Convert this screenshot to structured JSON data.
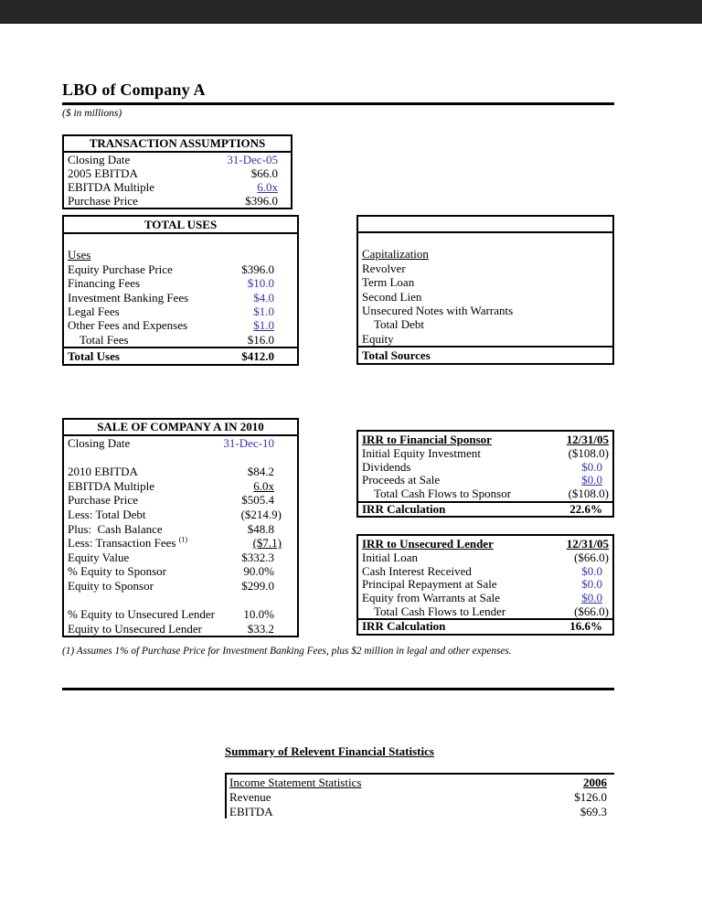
{
  "colors": {
    "input_blue": "#3333b2",
    "top_bar": "#262626",
    "border": "#000000"
  },
  "header": {
    "title": "LBO of Company A",
    "subtitle": "($ in millions)"
  },
  "transaction_assumptions": {
    "title": "TRANSACTION ASSUMPTIONS",
    "rows": [
      {
        "label": "Closing Date",
        "value": "31-Dec-05"
      },
      {
        "label": "2005 EBITDA",
        "value": "$66.0"
      },
      {
        "label": "EBITDA Multiple",
        "value": "6.0x"
      },
      {
        "label": "Purchase Price",
        "value": "$396.0"
      }
    ]
  },
  "total_uses": {
    "title": "TOTAL USES",
    "section_label": "Uses",
    "rows": [
      {
        "label": "Equity Purchase Price",
        "value": "$396.0"
      },
      {
        "label": "Financing Fees",
        "value": "$10.0"
      },
      {
        "label": "Investment Banking Fees",
        "value": "$4.0"
      },
      {
        "label": "Legal Fees",
        "value": "$1.0"
      },
      {
        "label": "Other Fees and Expenses",
        "value": "$1.0"
      },
      {
        "label": "Total Fees",
        "value": "$16.0"
      }
    ],
    "total": {
      "label": "Total Uses",
      "value": "$412.0"
    }
  },
  "total_sources": {
    "title": "",
    "section_label": "Capitalization",
    "rows": [
      {
        "label": "Revolver"
      },
      {
        "label": "Term Loan"
      },
      {
        "label": "Second Lien"
      },
      {
        "label": "Unsecured Notes with Warrants"
      },
      {
        "label": "Total Debt"
      },
      {
        "label": "Equity"
      }
    ],
    "total": {
      "label": "Total Sources",
      "value": ""
    }
  },
  "sale_2010": {
    "title": "SALE OF COMPANY A IN 2010",
    "footnote_ref": "(1)",
    "rows": [
      {
        "label": "Closing Date",
        "value": "31-Dec-10"
      },
      {
        "label": "",
        "value": ""
      },
      {
        "label": "2010 EBITDA",
        "value": "$84.2"
      },
      {
        "label": "EBITDA Multiple",
        "value": "6.0x"
      },
      {
        "label": "Purchase Price",
        "value": "$505.4"
      },
      {
        "label": "Less: Total Debt",
        "value": "($214.9)"
      },
      {
        "label": "Plus:  Cash Balance",
        "value": "$48.8"
      },
      {
        "label": "Less: Transaction Fees",
        "value": "($7.1)"
      },
      {
        "label": "Equity Value",
        "value": "$332.3"
      },
      {
        "label": "% Equity to Sponsor",
        "value": "90.0%"
      },
      {
        "label": "Equity to Sponsor",
        "value": "$299.0"
      },
      {
        "label": "",
        "value": ""
      },
      {
        "label": "% Equity to Unsecured Lender",
        "value": "10.0%"
      },
      {
        "label": "Equity to Unsecured Lender",
        "value": "$33.2"
      }
    ]
  },
  "irr_sponsor": {
    "title": "IRR to Financial Sponsor",
    "date": "12/31/05",
    "rows": [
      {
        "label": "Initial Equity Investment",
        "value": "($108.0)"
      },
      {
        "label": "Dividends",
        "value": "$0.0"
      },
      {
        "label": "Proceeds at Sale",
        "value": "$0.0"
      },
      {
        "label": "Total Cash Flows to Sponsor",
        "value": "($108.0)"
      }
    ],
    "result": {
      "label": "IRR Calculation",
      "value": "22.6%"
    }
  },
  "irr_lender": {
    "title": "IRR to Unsecured Lender",
    "date": "12/31/05",
    "rows": [
      {
        "label": "Initial Loan",
        "value": "($66.0)"
      },
      {
        "label": "Cash Interest Received",
        "value": "$0.0"
      },
      {
        "label": "Principal Repayment at Sale",
        "value": "$0.0"
      },
      {
        "label": "Equity from Warrants at Sale",
        "value": "$0.0"
      },
      {
        "label": "Total Cash Flows to Lender",
        "value": "($66.0)"
      }
    ],
    "result": {
      "label": "IRR Calculation",
      "value": "16.6%"
    }
  },
  "footnote": "(1) Assumes 1% of Purchase Price for Investment Banking Fees, plus $2 million in legal and other expenses.",
  "summary": {
    "heading": "Summary of Relevent Financial Statistics",
    "income_statement": {
      "header_label": "Income Statement Statistics",
      "year": "2006",
      "rows": [
        {
          "label": "Revenue",
          "value": "$126.0"
        },
        {
          "label": "EBITDA",
          "value": "$69.3"
        }
      ]
    }
  }
}
